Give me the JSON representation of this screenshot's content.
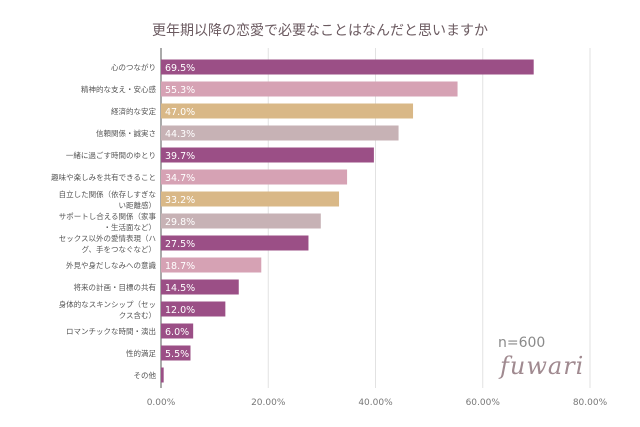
{
  "chart_data": {
    "type": "bar",
    "orientation": "horizontal",
    "title": "更年期以降の恋愛で必要なことはなんだと思いますか",
    "categories": [
      "心のつながり",
      "精神的な支え・安心感",
      "経済的な安定",
      "信頼関係・誠実さ",
      "一緒に過ごす時間のゆとり",
      "趣味や楽しみを共有できること",
      "自立した関係（依存しすぎない距離感）",
      "サポートし合える関係（家事・生活面など）",
      "セックス以外の愛情表現（ハグ、手をつなぐなど）",
      "外見や身だしなみへの意識",
      "将来の計画・目標の共有",
      "身体的なスキンシップ（セックス含む）",
      "ロマンチックな時間・演出",
      "性的満足",
      "その他"
    ],
    "values": [
      69.5,
      55.3,
      47.0,
      44.3,
      39.7,
      34.7,
      33.2,
      29.8,
      27.5,
      18.7,
      14.5,
      12.0,
      6.0,
      5.5,
      0.5
    ],
    "data_labels": [
      "69.5%",
      "55.3%",
      "47.0%",
      "44.3%",
      "39.7%",
      "34.7%",
      "33.2%",
      "29.8%",
      "27.5%",
      "18.7%",
      "14.5%",
      "12.0%",
      "6.0%",
      "5.5%",
      "0.5%"
    ],
    "bar_colors": [
      "#9b4f86",
      "#d6a2b4",
      "#d9b887",
      "#c7b2b5",
      "#9b4f86",
      "#d6a2b4",
      "#d9b887",
      "#c7b2b5",
      "#9b4f86",
      "#d6a2b4",
      "#9b4f86",
      "#9b4f86",
      "#9b4f86",
      "#9b4f86",
      "#9b4f86"
    ],
    "xlim": [
      0,
      80
    ],
    "xticks": [
      0,
      20,
      40,
      60,
      80
    ],
    "xtick_labels": [
      "0.00%",
      "20.00%",
      "40.00%",
      "60.00%",
      "80.00%"
    ],
    "grid": true,
    "annotation": "n=600"
  },
  "logo": "fuwari"
}
